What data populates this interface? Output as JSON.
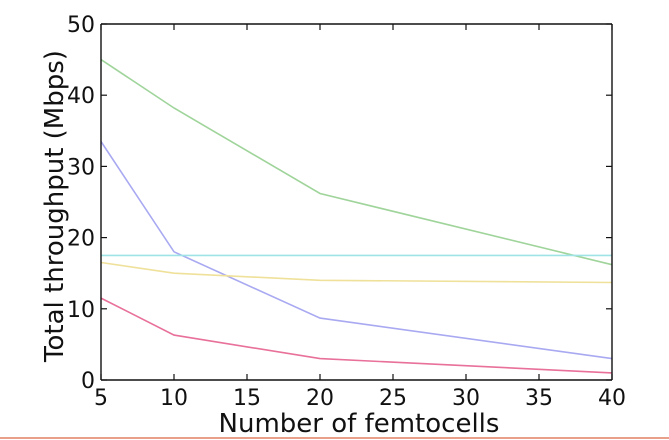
{
  "chart_data": {
    "type": "line",
    "xlabel": "Number of femtocells",
    "ylabel": "Total throughput (Mbps)",
    "xlim": [
      5,
      40
    ],
    "ylim": [
      0,
      50
    ],
    "xticks": [
      5,
      10,
      15,
      20,
      25,
      30,
      35,
      40
    ],
    "yticks": [
      0,
      10,
      20,
      30,
      40,
      50
    ],
    "xtick_labels": [
      "5",
      "10",
      "15",
      "20",
      "25",
      "30",
      "35",
      "40"
    ],
    "ytick_labels": [
      "0",
      "10",
      "20",
      "30",
      "40",
      "50"
    ],
    "grid": false,
    "x": [
      5,
      10,
      20,
      40
    ],
    "series": [
      {
        "color": "#9fd49a",
        "values": [
          45,
          38.2,
          26.2,
          16.2
        ]
      },
      {
        "color": "#a9a9f2",
        "values": [
          33.5,
          18,
          8.7,
          3
        ]
      },
      {
        "color": "#9fe3e6",
        "values": [
          17.5,
          17.5,
          17.5,
          17.5
        ]
      },
      {
        "color": "#efe19a",
        "values": [
          16.5,
          15,
          14,
          13.7
        ]
      },
      {
        "color": "#e8709a",
        "values": [
          11.5,
          6.3,
          3,
          1
        ]
      }
    ]
  },
  "decor": {
    "bottom_rule_color": "#e8a08a",
    "axis_color": "#111111"
  }
}
